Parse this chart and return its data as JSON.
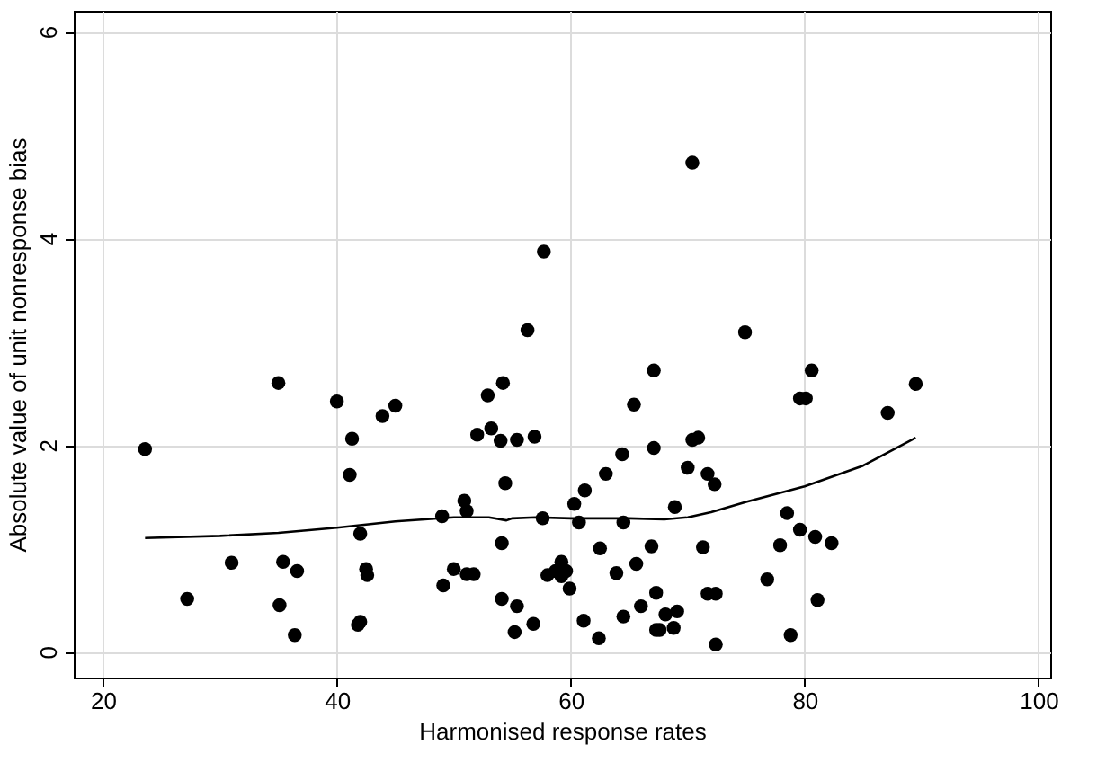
{
  "chart_data": {
    "type": "scatter",
    "xlabel": "Harmonised response rates",
    "ylabel": "Absolute value of unit nonresponse bias",
    "xlim": [
      17.5,
      101
    ],
    "ylim": [
      -0.25,
      6.2
    ],
    "xticks": [
      20,
      40,
      60,
      80,
      100
    ],
    "yticks": [
      0,
      2,
      4,
      6
    ],
    "grid": true,
    "series": [
      {
        "color": "#000000",
        "marker": "circle",
        "x": [
          23.6,
          35.0,
          40.0,
          43.9,
          45.0,
          41.3,
          41.1,
          42.0,
          31.0,
          35.4,
          36.6,
          42.5,
          42.6,
          27.2,
          35.1,
          36.4,
          41.8,
          42.0,
          57.7,
          56.3,
          54.2,
          52.9,
          53.2,
          52.0,
          54.0,
          55.4,
          56.9,
          65.4,
          67.1,
          67.1,
          64.4,
          63.0,
          61.2,
          60.3,
          54.4,
          50.9,
          51.1,
          49.0,
          57.6,
          60.7,
          64.5,
          54.1,
          62.5,
          66.9,
          65.6,
          63.9,
          50.0,
          51.1,
          51.7,
          49.1,
          59.2,
          58.0,
          58.7,
          59.6,
          59.2,
          59.9,
          54.1,
          55.4,
          55.2,
          56.8,
          61.1,
          62.4,
          64.5,
          66.0,
          67.3,
          67.3,
          70.4,
          74.9,
          80.6,
          79.6,
          80.1,
          87.1,
          89.5,
          70.4,
          70.9,
          70.0,
          71.7,
          72.3,
          68.9,
          78.5,
          79.6,
          80.9,
          82.3,
          77.9,
          71.3,
          76.8,
          71.7,
          72.4,
          81.1,
          68.1,
          69.1,
          67.6,
          68.8,
          72.4,
          78.8
        ],
        "values": [
          1.96,
          2.6,
          2.42,
          2.28,
          2.38,
          2.06,
          1.71,
          1.14,
          0.86,
          0.87,
          0.78,
          0.8,
          0.74,
          0.51,
          0.45,
          0.16,
          0.26,
          0.29,
          3.87,
          3.11,
          2.6,
          2.48,
          2.16,
          2.1,
          2.04,
          2.05,
          2.08,
          2.39,
          2.72,
          1.97,
          1.91,
          1.72,
          1.56,
          1.43,
          1.63,
          1.46,
          1.36,
          1.31,
          1.29,
          1.25,
          1.25,
          1.05,
          1.0,
          1.02,
          0.85,
          0.76,
          0.8,
          0.75,
          0.75,
          0.64,
          0.87,
          0.74,
          0.78,
          0.78,
          0.73,
          0.61,
          0.51,
          0.44,
          0.19,
          0.27,
          0.3,
          0.13,
          0.34,
          0.44,
          0.57,
          0.21,
          4.73,
          3.09,
          2.72,
          2.45,
          2.45,
          2.31,
          2.59,
          2.05,
          2.07,
          1.78,
          1.72,
          1.62,
          1.4,
          1.34,
          1.18,
          1.11,
          1.05,
          1.03,
          1.01,
          0.7,
          0.56,
          0.56,
          0.5,
          0.36,
          0.39,
          0.21,
          0.23,
          0.07,
          0.16
        ]
      },
      {
        "type": "line",
        "color": "#000000",
        "x": [
          23.6,
          30,
          35,
          40,
          45,
          50,
          53,
          54.5,
          55,
          57,
          60,
          65,
          68,
          70,
          72,
          75,
          80,
          85,
          89.5
        ],
        "values": [
          1.1,
          1.12,
          1.15,
          1.2,
          1.26,
          1.3,
          1.3,
          1.27,
          1.29,
          1.3,
          1.29,
          1.29,
          1.28,
          1.3,
          1.35,
          1.45,
          1.6,
          1.8,
          2.07
        ]
      }
    ]
  }
}
